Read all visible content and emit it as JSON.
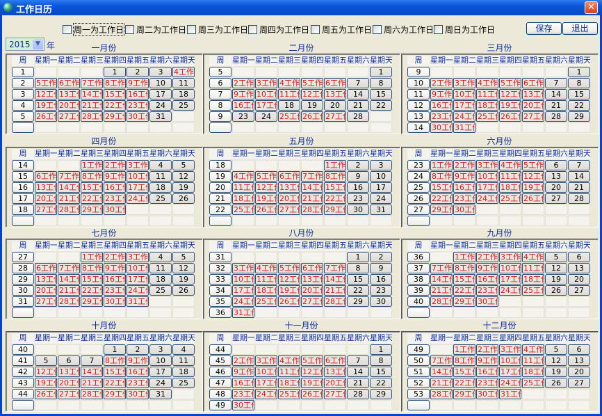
{
  "window": {
    "title": "工作日历",
    "close_label": "✕"
  },
  "options": [
    "周一为工作日",
    "周二为工作日",
    "周三为工作日",
    "周四为工作日",
    "周五为工作日",
    "周六为工作日",
    "周日为工作日"
  ],
  "options_checked": [
    false,
    false,
    false,
    false,
    false,
    false,
    false
  ],
  "buttons": {
    "save": "保存",
    "exit": "退出"
  },
  "year": {
    "value": "2015",
    "unit": "年"
  },
  "headers": [
    "周",
    "星期一",
    "星期二",
    "星期三",
    "星期四",
    "星期五",
    "星期六",
    "星期天"
  ],
  "colors": {
    "work_text": "#d81818",
    "header_text": "#0b2b9a",
    "titlebar": "#0a55d8"
  },
  "months": [
    {
      "title": "一月份",
      "weeks": [
        "1",
        "2",
        "3",
        "4",
        "5",
        ""
      ],
      "rows": [
        [
          "",
          "",
          "",
          "1",
          "2",
          "3",
          "4工作"
        ],
        [
          "5工作",
          "6工作",
          "7工作",
          "8工作",
          "9工作",
          "10",
          "11"
        ],
        [
          "12工作",
          "13工作",
          "14工作",
          "15工作",
          "16工作",
          "17",
          "18"
        ],
        [
          "19工作",
          "20工作",
          "21工作",
          "22工作",
          "23工作",
          "24",
          "25"
        ],
        [
          "26工作",
          "27工作",
          "28工作",
          "29工作",
          "30工作",
          "31",
          ""
        ],
        [
          "",
          "",
          "",
          "",
          "",
          "",
          ""
        ]
      ]
    },
    {
      "title": "二月份",
      "weeks": [
        "5",
        "6",
        "7",
        "8",
        "9",
        ""
      ],
      "rows": [
        [
          "",
          "",
          "",
          "",
          "",
          "",
          "1"
        ],
        [
          "2工作",
          "3工作",
          "4工作",
          "5工作",
          "6工作",
          "7",
          "8"
        ],
        [
          "9工作",
          "10工作",
          "11工作",
          "12工作",
          "13工作",
          "14",
          "15"
        ],
        [
          "16工作",
          "17工作",
          "18",
          "19",
          "20",
          "21",
          "22"
        ],
        [
          "23",
          "24",
          "25工作",
          "26工作",
          "27工作",
          "28",
          ""
        ],
        [
          "",
          "",
          "",
          "",
          "",
          "",
          ""
        ]
      ]
    },
    {
      "title": "三月份",
      "weeks": [
        "9",
        "10",
        "11",
        "12",
        "13",
        "14"
      ],
      "rows": [
        [
          "",
          "",
          "",
          "",
          "",
          "",
          "1"
        ],
        [
          "2工作",
          "3工作",
          "4工作",
          "5工作",
          "6工作",
          "7",
          "8"
        ],
        [
          "9工作",
          "10工作",
          "11工作",
          "12工作",
          "13工作",
          "14",
          "15"
        ],
        [
          "16工作",
          "17工作",
          "18工作",
          "19工作",
          "20工作",
          "21",
          "22"
        ],
        [
          "23工作",
          "24工作",
          "25工作",
          "26工作",
          "27工作",
          "28",
          "29"
        ],
        [
          "30工作",
          "31工作",
          "",
          "",
          "",
          "",
          ""
        ]
      ]
    },
    {
      "title": "四月份",
      "weeks": [
        "14",
        "15",
        "16",
        "17",
        "18",
        ""
      ],
      "rows": [
        [
          "",
          "",
          "1工作",
          "2工作",
          "3工作",
          "4",
          "5"
        ],
        [
          "6工作",
          "7工作",
          "8工作",
          "9工作",
          "10工作",
          "11",
          "12"
        ],
        [
          "13工作",
          "14工作",
          "15工作",
          "16工作",
          "17工作",
          "18",
          "19"
        ],
        [
          "20工作",
          "21工作",
          "22工作",
          "23工作",
          "24工作",
          "25",
          "26"
        ],
        [
          "27工作",
          "28工作",
          "29工作",
          "30工作",
          "",
          "",
          ""
        ],
        [
          "",
          "",
          "",
          "",
          "",
          "",
          ""
        ]
      ]
    },
    {
      "title": "五月份",
      "weeks": [
        "18",
        "19",
        "20",
        "21",
        "22",
        ""
      ],
      "rows": [
        [
          "",
          "",
          "",
          "",
          "1工作",
          "2",
          "3"
        ],
        [
          "4工作",
          "5工作",
          "6工作",
          "7工作",
          "8工作",
          "9",
          "10"
        ],
        [
          "11工作",
          "12工作",
          "13工作",
          "14工作",
          "15工作",
          "16",
          "17"
        ],
        [
          "18工作",
          "19工作",
          "20工作",
          "21工作",
          "22工作",
          "23",
          "24"
        ],
        [
          "25工作",
          "26工作",
          "27工作",
          "28工作",
          "29工作",
          "30",
          "31"
        ],
        [
          "",
          "",
          "",
          "",
          "",
          "",
          ""
        ]
      ]
    },
    {
      "title": "六月份",
      "weeks": [
        "23",
        "24",
        "25",
        "26",
        "27",
        ""
      ],
      "rows": [
        [
          "1工作",
          "2工作",
          "3工作",
          "4工作",
          "5工作",
          "6",
          "7"
        ],
        [
          "8工作",
          "9工作",
          "10工作",
          "11工作",
          "12工作",
          "13",
          "14"
        ],
        [
          "15工作",
          "16工作",
          "17工作",
          "18工作",
          "19工作",
          "20",
          "21"
        ],
        [
          "22工作",
          "23工作",
          "24工作",
          "25工作",
          "26工作",
          "27",
          "28"
        ],
        [
          "29工作",
          "30工作",
          "",
          "",
          "",
          "",
          ""
        ],
        [
          "",
          "",
          "",
          "",
          "",
          "",
          ""
        ]
      ]
    },
    {
      "title": "七月份",
      "weeks": [
        "27",
        "28",
        "29",
        "30",
        "31",
        ""
      ],
      "rows": [
        [
          "",
          "",
          "1工作",
          "2工作",
          "3工作",
          "4",
          "5"
        ],
        [
          "6工作",
          "7工作",
          "8工作",
          "9工作",
          "10工作",
          "11",
          "12"
        ],
        [
          "13工作",
          "14工作",
          "15工作",
          "16工作",
          "17工作",
          "18",
          "19"
        ],
        [
          "20工作",
          "21工作",
          "22工作",
          "23工作",
          "24工作",
          "25",
          "26"
        ],
        [
          "27工作",
          "28工作",
          "29工作",
          "30工作",
          "31工作",
          "",
          ""
        ],
        [
          "",
          "",
          "",
          "",
          "",
          "",
          ""
        ]
      ]
    },
    {
      "title": "八月份",
      "weeks": [
        "31",
        "32",
        "33",
        "34",
        "35",
        "36"
      ],
      "rows": [
        [
          "",
          "",
          "",
          "",
          "",
          "1",
          "2"
        ],
        [
          "3工作",
          "4工作",
          "5工作",
          "6工作",
          "7工作",
          "8",
          "9"
        ],
        [
          "10工作",
          "11工作",
          "12工作",
          "13工作",
          "14工作",
          "15",
          "16"
        ],
        [
          "17工作",
          "18工作",
          "19工作",
          "20工作",
          "21工作",
          "22",
          "23"
        ],
        [
          "24工作",
          "25工作",
          "26工作",
          "27工作",
          "28工作",
          "29",
          "30"
        ],
        [
          "31工作",
          "",
          "",
          "",
          "",
          "",
          ""
        ]
      ]
    },
    {
      "title": "九月份",
      "weeks": [
        "36",
        "37",
        "38",
        "39",
        "40",
        ""
      ],
      "rows": [
        [
          "",
          "1工作",
          "2工作",
          "3工作",
          "4工作",
          "5",
          "6"
        ],
        [
          "7工作",
          "8工作",
          "9工作",
          "10工作",
          "11工作",
          "12",
          "13"
        ],
        [
          "14工作",
          "15工作",
          "16工作",
          "17工作",
          "18工作",
          "19",
          "20"
        ],
        [
          "21工作",
          "22工作",
          "23工作",
          "24工作",
          "25工作",
          "26",
          "27"
        ],
        [
          "28工作",
          "29工作",
          "30工作",
          "",
          "",
          "",
          ""
        ],
        [
          "",
          "",
          "",
          "",
          "",
          "",
          ""
        ]
      ]
    },
    {
      "title": "十月份",
      "weeks": [
        "40",
        "41",
        "42",
        "43",
        "44",
        ""
      ],
      "rows": [
        [
          "",
          "",
          "",
          "1",
          "2",
          "3",
          "4"
        ],
        [
          "5",
          "6",
          "7",
          "8工作",
          "9工作",
          "10",
          "11"
        ],
        [
          "12工作",
          "13工作",
          "14工作",
          "15工作",
          "16工作",
          "17",
          "18"
        ],
        [
          "19工作",
          "20工作",
          "21工作",
          "22工作",
          "23工作",
          "24",
          "25"
        ],
        [
          "26工作",
          "27工作",
          "28工作",
          "29工作",
          "30工作",
          "31",
          ""
        ],
        [
          "",
          "",
          "",
          "",
          "",
          "",
          ""
        ]
      ]
    },
    {
      "title": "十一月份",
      "weeks": [
        "44",
        "45",
        "46",
        "47",
        "48",
        "49"
      ],
      "rows": [
        [
          "",
          "",
          "",
          "",
          "",
          "",
          "1"
        ],
        [
          "2工作",
          "3工作",
          "4工作",
          "5工作",
          "6工作",
          "7",
          "8"
        ],
        [
          "9工作",
          "10工作",
          "11工作",
          "12工作",
          "13工作",
          "14",
          "15"
        ],
        [
          "16工作",
          "17工作",
          "18工作",
          "19工作",
          "20工作",
          "21",
          "22"
        ],
        [
          "23工作",
          "24工作",
          "25工作",
          "26工作",
          "27工作",
          "28",
          "29"
        ],
        [
          "30工作",
          "",
          "",
          "",
          "",
          "",
          ""
        ]
      ]
    },
    {
      "title": "十二月份",
      "weeks": [
        "49",
        "50",
        "51",
        "52",
        "53",
        ""
      ],
      "rows": [
        [
          "",
          "1工作",
          "2工作",
          "3工作",
          "4工作",
          "5",
          "6"
        ],
        [
          "7工作",
          "8工作",
          "9工作",
          "10工作",
          "11工作",
          "12",
          "13"
        ],
        [
          "14工作",
          "15工作",
          "16工作",
          "17工作",
          "18工作",
          "19",
          "20"
        ],
        [
          "21工作",
          "22工作",
          "23工作",
          "24工作",
          "25工作",
          "26",
          "27"
        ],
        [
          "28工作",
          "29工作",
          "30工作",
          "31工作",
          "",
          "",
          ""
        ],
        [
          "",
          "",
          "",
          "",
          "",
          "",
          ""
        ]
      ]
    }
  ]
}
